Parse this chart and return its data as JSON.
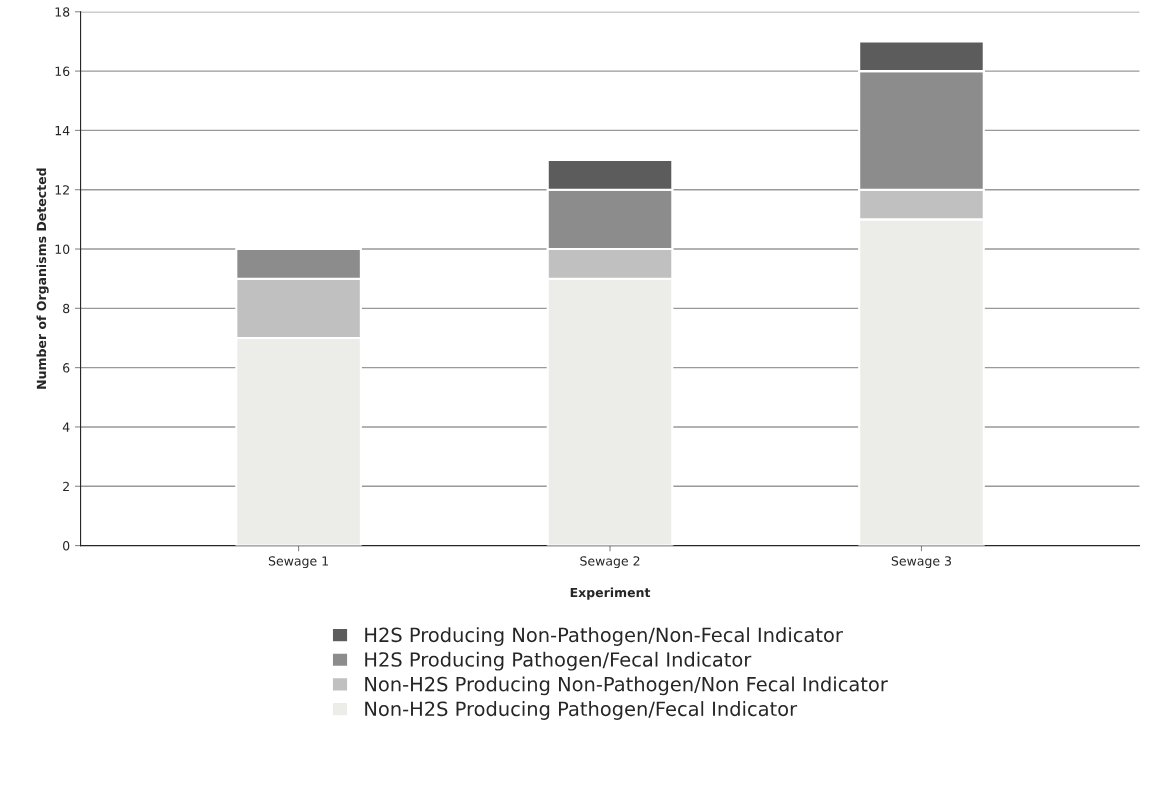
{
  "chart_data": {
    "type": "bar",
    "stacked": true,
    "xlabel": "Experiment",
    "ylabel": "Number of Organisms Detected",
    "categories": [
      "Sewage 1",
      "Sewage 2",
      "Sewage 3"
    ],
    "series": [
      {
        "name": "Non-H2S Producing Pathogen/Fecal Indicator",
        "color": "#ecece8",
        "values": [
          7,
          9,
          11
        ]
      },
      {
        "name": "Non-H2S Producing Non-Pathogen/Non Fecal Indicator",
        "color": "#c0c0c0",
        "values": [
          2,
          1,
          1
        ]
      },
      {
        "name": "H2S Producing Pathogen/Fecal Indicator",
        "color": "#8c8c8c",
        "values": [
          1,
          2,
          4
        ]
      },
      {
        "name": "H2S Producing Non-Pathogen/Non-Fecal Indicator",
        "color": "#5c5c5c",
        "values": [
          null,
          1,
          1
        ]
      }
    ],
    "ylim": [
      0,
      18
    ],
    "yticks": [
      0,
      2,
      4,
      6,
      8,
      10,
      12,
      14,
      16,
      18
    ],
    "grid": "y",
    "legend": "bottom"
  }
}
